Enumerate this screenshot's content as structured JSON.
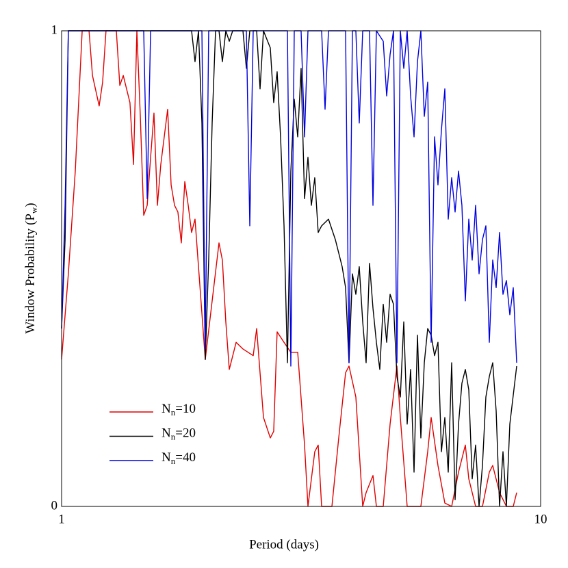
{
  "chart_data": {
    "type": "line",
    "xlabel": "Period (days)",
    "ylabel": "Window Probability (Pw)",
    "xscale": "log",
    "xlim": [
      1,
      10
    ],
    "xticks": [
      1,
      10
    ],
    "ylim": [
      0,
      1
    ],
    "yticks": [
      0,
      1
    ],
    "legend": "lower left",
    "series": [
      {
        "name": "Nn=10",
        "color": "#e00000",
        "x": [
          1.0,
          1.033,
          1.068,
          1.104,
          1.141,
          1.16,
          1.198,
          1.218,
          1.238,
          1.301,
          1.323,
          1.345,
          1.389,
          1.413,
          1.436,
          1.46,
          1.484,
          1.509,
          1.534,
          1.559,
          1.585,
          1.611,
          1.665,
          1.693,
          1.721,
          1.749,
          1.778,
          1.808,
          1.838,
          1.868,
          1.899,
          1.995,
          2.062,
          2.131,
          2.166,
          2.202,
          2.239,
          2.314,
          2.391,
          2.512,
          2.554,
          2.639,
          2.727,
          2.772,
          2.818,
          2.913,
          3.01,
          3.111,
          3.215,
          3.268,
          3.377,
          3.433,
          3.49,
          3.667,
          3.789,
          3.916,
          3.981,
          4.114,
          4.252,
          4.322,
          4.467,
          4.541,
          4.693,
          4.85,
          5.012,
          5.095,
          5.265,
          5.623,
          5.811,
          5.908,
          6.105,
          6.31,
          6.521,
          6.739,
          6.964,
          7.08,
          7.316,
          7.561,
          7.814,
          7.943,
          8.209,
          8.483,
          8.767,
          8.913
        ],
        "values": [
          0.309,
          0.489,
          0.705,
          1,
          1,
          0.906,
          0.842,
          0.892,
          1,
          1,
          0.885,
          0.906,
          0.849,
          0.719,
          1,
          0.82,
          0.612,
          0.633,
          0.734,
          0.827,
          0.633,
          0.719,
          0.835,
          0.676,
          0.633,
          0.619,
          0.554,
          0.683,
          0.633,
          0.576,
          0.604,
          0.309,
          0.432,
          0.554,
          0.518,
          0.388,
          0.288,
          0.345,
          0.331,
          0.317,
          0.374,
          0.187,
          0.144,
          0.158,
          0.367,
          0.345,
          0.324,
          0.324,
          0.129,
          0,
          0.115,
          0.129,
          0,
          0,
          0.144,
          0.281,
          0.295,
          0.23,
          0,
          0.029,
          0.065,
          0,
          0,
          0.173,
          0.295,
          0.187,
          0,
          0,
          0.115,
          0.187,
          0.086,
          0.007,
          0,
          0.072,
          0.129,
          0.058,
          0,
          0,
          0.072,
          0.086,
          0.029,
          0,
          0,
          0.029
        ]
      },
      {
        "name": "Nn=20",
        "color": "#000000",
        "x": [
          1.0,
          1.017,
          1.033,
          1.868,
          1.899,
          1.931,
          1.963,
          1.995,
          2.028,
          2.062,
          2.096,
          2.131,
          2.166,
          2.202,
          2.239,
          2.276,
          2.391,
          2.431,
          2.471,
          2.554,
          2.596,
          2.639,
          2.727,
          2.772,
          2.818,
          2.865,
          2.913,
          2.961,
          3.01,
          3.06,
          3.111,
          3.162,
          3.215,
          3.268,
          3.322,
          3.377,
          3.433,
          3.49,
          3.607,
          3.728,
          3.852,
          3.916,
          3.981,
          4.047,
          4.114,
          4.182,
          4.252,
          4.322,
          4.394,
          4.467,
          4.541,
          4.616,
          4.693,
          4.771,
          4.85,
          4.93,
          5.012,
          5.095,
          5.18,
          5.265,
          5.353,
          5.442,
          5.532,
          5.623,
          5.717,
          5.811,
          5.908,
          6.006,
          6.105,
          6.207,
          6.31,
          6.414,
          6.521,
          6.629,
          6.739,
          6.85,
          6.964,
          7.08,
          7.197,
          7.316,
          7.438,
          7.561,
          7.686,
          7.814,
          7.943,
          8.075,
          8.209,
          8.345,
          8.483,
          8.624,
          8.913
        ],
        "values": [
          0.374,
          0.561,
          1,
          1,
          0.935,
          1,
          0.806,
          0.309,
          0.518,
          0.806,
          1,
          1,
          0.935,
          1,
          0.978,
          1,
          1,
          0.921,
          1,
          1,
          0.878,
          1,
          0.964,
          0.849,
          0.914,
          0.777,
          0.59,
          0.302,
          0.705,
          0.856,
          0.777,
          0.921,
          0.647,
          0.734,
          0.633,
          0.691,
          0.576,
          0.59,
          0.604,
          0.561,
          0.504,
          0.46,
          0.302,
          0.489,
          0.446,
          0.504,
          0.388,
          0.302,
          0.511,
          0.417,
          0.345,
          0.288,
          0.425,
          0.345,
          0.446,
          0.425,
          0.273,
          0.23,
          0.388,
          0.173,
          0.288,
          0.072,
          0.36,
          0.144,
          0.302,
          0.374,
          0.36,
          0.317,
          0.345,
          0.115,
          0.187,
          0.072,
          0.302,
          0.014,
          0.173,
          0.259,
          0.288,
          0.245,
          0.058,
          0.129,
          0,
          0.086,
          0.23,
          0.273,
          0.302,
          0.201,
          0,
          0.115,
          0,
          0.173,
          0.295
        ]
      },
      {
        "name": "Nn=40",
        "color": "#0000e0",
        "x": [
          1.0,
          1.017,
          1.033,
          1.484,
          1.509,
          1.534,
          1.963,
          1.995,
          2.028,
          2.431,
          2.471,
          2.512,
          2.961,
          3.01,
          3.06,
          3.162,
          3.215,
          3.268,
          3.49,
          3.548,
          3.607,
          3.916,
          3.981,
          4.047,
          4.114,
          4.182,
          4.252,
          4.394,
          4.467,
          4.541,
          4.693,
          4.771,
          4.85,
          4.93,
          5.012,
          5.095,
          5.18,
          5.265,
          5.353,
          5.442,
          5.532,
          5.623,
          5.717,
          5.811,
          5.908,
          6.006,
          6.105,
          6.207,
          6.31,
          6.414,
          6.521,
          6.629,
          6.739,
          6.85,
          6.964,
          7.08,
          7.197,
          7.316,
          7.438,
          7.561,
          7.686,
          7.814,
          7.943,
          8.075,
          8.209,
          8.345,
          8.483,
          8.624,
          8.767,
          8.913
        ],
        "values": [
          0.374,
          0.633,
          1,
          1,
          0.647,
          1,
          1,
          0.331,
          1,
          1,
          0.59,
          1,
          1,
          0.295,
          1,
          1,
          0.777,
          1,
          1,
          0.835,
          1,
          1,
          0.302,
          1,
          1,
          0.806,
          1,
          1,
          0.633,
          1,
          0.978,
          0.863,
          0.95,
          1,
          0.302,
          1,
          0.921,
          1,
          0.863,
          0.777,
          0.935,
          1,
          0.82,
          0.892,
          0.345,
          0.777,
          0.676,
          0.791,
          0.878,
          0.604,
          0.691,
          0.619,
          0.705,
          0.633,
          0.432,
          0.604,
          0.518,
          0.633,
          0.489,
          0.561,
          0.59,
          0.345,
          0.518,
          0.46,
          0.576,
          0.446,
          0.475,
          0.403,
          0.46,
          0.302
        ]
      }
    ]
  }
}
